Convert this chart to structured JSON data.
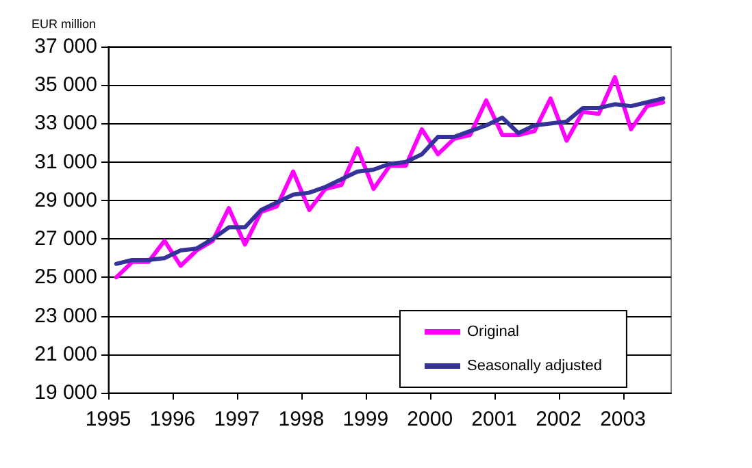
{
  "chart_data": {
    "type": "line",
    "ylabel": "EUR million",
    "x": [
      1995.125,
      1995.375,
      1995.625,
      1995.875,
      1996.125,
      1996.375,
      1996.625,
      1996.875,
      1997.125,
      1997.375,
      1997.625,
      1997.875,
      1998.125,
      1998.375,
      1998.625,
      1998.875,
      1999.125,
      1999.375,
      1999.625,
      1999.875,
      2000.125,
      2000.375,
      2000.625,
      2000.875,
      2001.125,
      2001.375,
      2001.625,
      2001.875,
      2002.125,
      2002.375,
      2002.625,
      2002.875,
      2003.125,
      2003.375,
      2003.625
    ],
    "series": [
      {
        "name": "Original",
        "color": "#ff00ff",
        "values": [
          25000,
          25800,
          25800,
          26900,
          25600,
          26400,
          26900,
          28600,
          26700,
          28400,
          28700,
          30500,
          28500,
          29600,
          29800,
          31700,
          29600,
          30800,
          30800,
          32700,
          31400,
          32200,
          32400,
          34200,
          32400,
          32400,
          32600,
          34300,
          32100,
          33600,
          33500,
          35400,
          32700,
          33900,
          34100
        ]
      },
      {
        "name": "Seasonally adjusted",
        "color": "#333399",
        "values": [
          25700,
          25900,
          25900,
          26000,
          26400,
          26500,
          27000,
          27600,
          27600,
          28500,
          28900,
          29300,
          29400,
          29700,
          30100,
          30500,
          30600,
          30900,
          31000,
          31400,
          32300,
          32300,
          32600,
          32900,
          33300,
          32500,
          32900,
          33000,
          33100,
          33800,
          33800,
          34000,
          33900,
          34100,
          34300
        ]
      }
    ],
    "xlim": [
      1995,
      2003.75
    ],
    "xticks": [
      1995,
      1996,
      1997,
      1998,
      1999,
      2000,
      2001,
      2002,
      2003
    ],
    "ylim": [
      19000,
      37000
    ],
    "yticks": [
      {
        "value": 19000,
        "label": "19 000"
      },
      {
        "value": 21000,
        "label": "21 000"
      },
      {
        "value": 23000,
        "label": "23 000"
      },
      {
        "value": 25000,
        "label": "25 000"
      },
      {
        "value": 27000,
        "label": "27 000"
      },
      {
        "value": 29000,
        "label": "29 000"
      },
      {
        "value": 31000,
        "label": "31 000"
      },
      {
        "value": 33000,
        "label": "33 000"
      },
      {
        "value": 35000,
        "label": "35 000"
      },
      {
        "value": 37000,
        "label": "37 000"
      }
    ],
    "grid": "y",
    "legend": "bottom right",
    "marker": "none",
    "line_style": "solid"
  }
}
